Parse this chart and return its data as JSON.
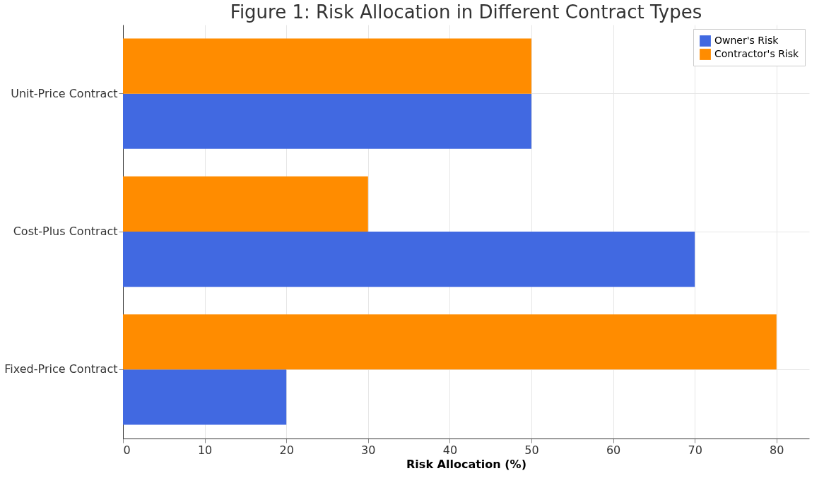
{
  "chart_data": {
    "type": "bar",
    "orientation": "horizontal",
    "title": "Figure 1: Risk Allocation in Different Contract Types",
    "xlabel": "Risk Allocation (%)",
    "categories": [
      "Unit-Price Contract",
      "Cost-Plus Contract",
      "Fixed-Price Contract"
    ],
    "series": [
      {
        "name": "Owner's Risk",
        "color": "#4169e1",
        "values": [
          50,
          70,
          20
        ]
      },
      {
        "name": "Contractor's Risk",
        "color": "#ff8c00",
        "values": [
          50,
          30,
          80
        ]
      }
    ],
    "xlim": [
      0,
      84
    ],
    "xticks": [
      0,
      10,
      20,
      30,
      40,
      50,
      60,
      70,
      80
    ],
    "grid": true,
    "legend": "top right"
  }
}
